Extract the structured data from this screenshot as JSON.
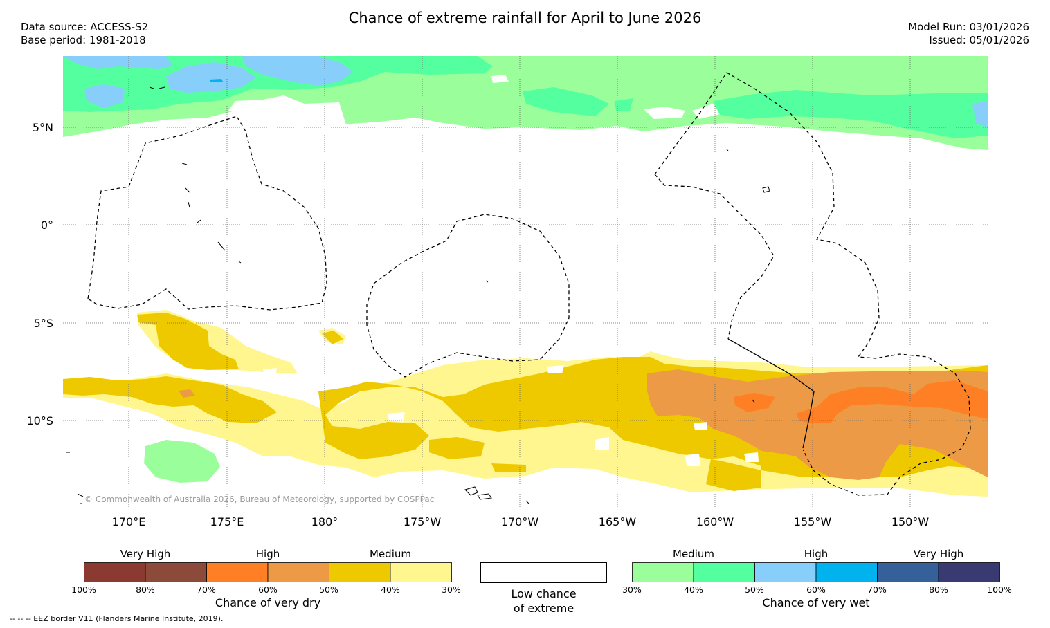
{
  "title": "Chance of extreme rainfall for April to June 2026",
  "data_source": "Data source: ACCESS-S2",
  "base_period": "Base period: 1981-2018",
  "model_run": "Model Run: 03/01/2026",
  "issued": "Issued: 05/01/2026",
  "map": {
    "lat_labels": [
      "5°N",
      "0°",
      "5°S",
      "10°S"
    ],
    "lat_values": [
      5,
      0,
      -5,
      -10
    ],
    "lon_labels": [
      "170°E",
      "175°E",
      "180°",
      "175°W",
      "170°W",
      "165°W",
      "160°W",
      "155°W",
      "150°W"
    ],
    "lon_values": [
      170,
      175,
      180,
      185,
      190,
      195,
      200,
      205,
      210
    ],
    "lon_range": [
      166.6,
      213.9
    ],
    "lat_range": [
      -14.6,
      8.6
    ],
    "copyright": "© Commonwealth of Australia 2026, Bureau of Meteorology, supported by COSPPac"
  },
  "legend_dry": {
    "categories": [
      "Very High",
      "High",
      "Medium"
    ],
    "ticks": [
      "100%",
      "80%",
      "70%",
      "60%",
      "50%",
      "40%",
      "30%"
    ],
    "colors": [
      "#8b3a32",
      "#8b4a3a",
      "#ff7f24",
      "#ec9a45",
      "#eec900",
      "#fff68f"
    ],
    "title": "Chance of very dry"
  },
  "legend_low": {
    "label_line1": "Low chance",
    "label_line2": "of extreme",
    "color": "#ffffff"
  },
  "legend_wet": {
    "categories": [
      "Medium",
      "High",
      "Very High"
    ],
    "ticks": [
      "30%",
      "40%",
      "50%",
      "60%",
      "70%",
      "80%",
      "100%"
    ],
    "colors": [
      "#9aff9a",
      "#54ff9f",
      "#87cefa",
      "#00b2ee",
      "#36609a",
      "#3a3a72"
    ],
    "title": "Chance of very wet"
  },
  "footnote": "--  --  -- EEZ border V11 (Flanders Marine Institute, 2019)."
}
